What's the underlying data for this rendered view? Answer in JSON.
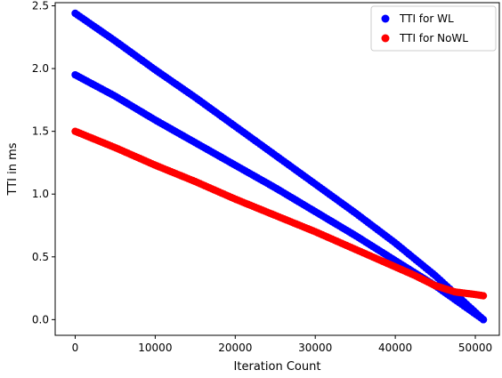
{
  "chart_data": {
    "type": "scatter",
    "title": "",
    "xlabel": "Iteration Count",
    "ylabel": "TTI in ms",
    "xlim": [
      -2500,
      53000
    ],
    "ylim": [
      -0.125,
      2.525
    ],
    "xticks": [
      0,
      10000,
      20000,
      30000,
      40000,
      50000
    ],
    "yticks": [
      0.0,
      0.5,
      1.0,
      1.5,
      2.0,
      2.5
    ],
    "xtick_labels": [
      "0",
      "10000",
      "20000",
      "30000",
      "40000",
      "50000"
    ],
    "ytick_labels": [
      "0.0",
      "0.5",
      "1.0",
      "1.5",
      "2.0",
      "2.5"
    ],
    "grid": false,
    "legend_position": "top-right",
    "series": [
      {
        "name": "TTI for WL",
        "color": "#0000ff",
        "segments": [
          {
            "x": [
              0,
              5000,
              10000,
              15000,
              20000,
              25000,
              30000,
              35000,
              40000,
              45000,
              51000
            ],
            "y": [
              2.44,
              2.22,
              1.99,
              1.77,
              1.54,
              1.31,
              1.08,
              0.85,
              0.61,
              0.35,
              0.0
            ]
          },
          {
            "x": [
              0,
              5000,
              10000,
              15000,
              20000,
              25000,
              30000,
              35000,
              40000,
              45000,
              51000
            ],
            "y": [
              1.95,
              1.78,
              1.59,
              1.41,
              1.23,
              1.05,
              0.86,
              0.67,
              0.47,
              0.27,
              0.0
            ]
          }
        ]
      },
      {
        "name": "TTI for NoWL",
        "color": "#ff0000",
        "segments": [
          {
            "x": [
              0,
              5000,
              10000,
              15000,
              20000,
              25000,
              30000,
              35000,
              40000,
              42500,
              45000,
              47500,
              50000,
              51000
            ],
            "y": [
              1.5,
              1.37,
              1.23,
              1.1,
              0.96,
              0.83,
              0.7,
              0.56,
              0.42,
              0.35,
              0.27,
              0.22,
              0.2,
              0.19
            ]
          }
        ]
      }
    ]
  }
}
